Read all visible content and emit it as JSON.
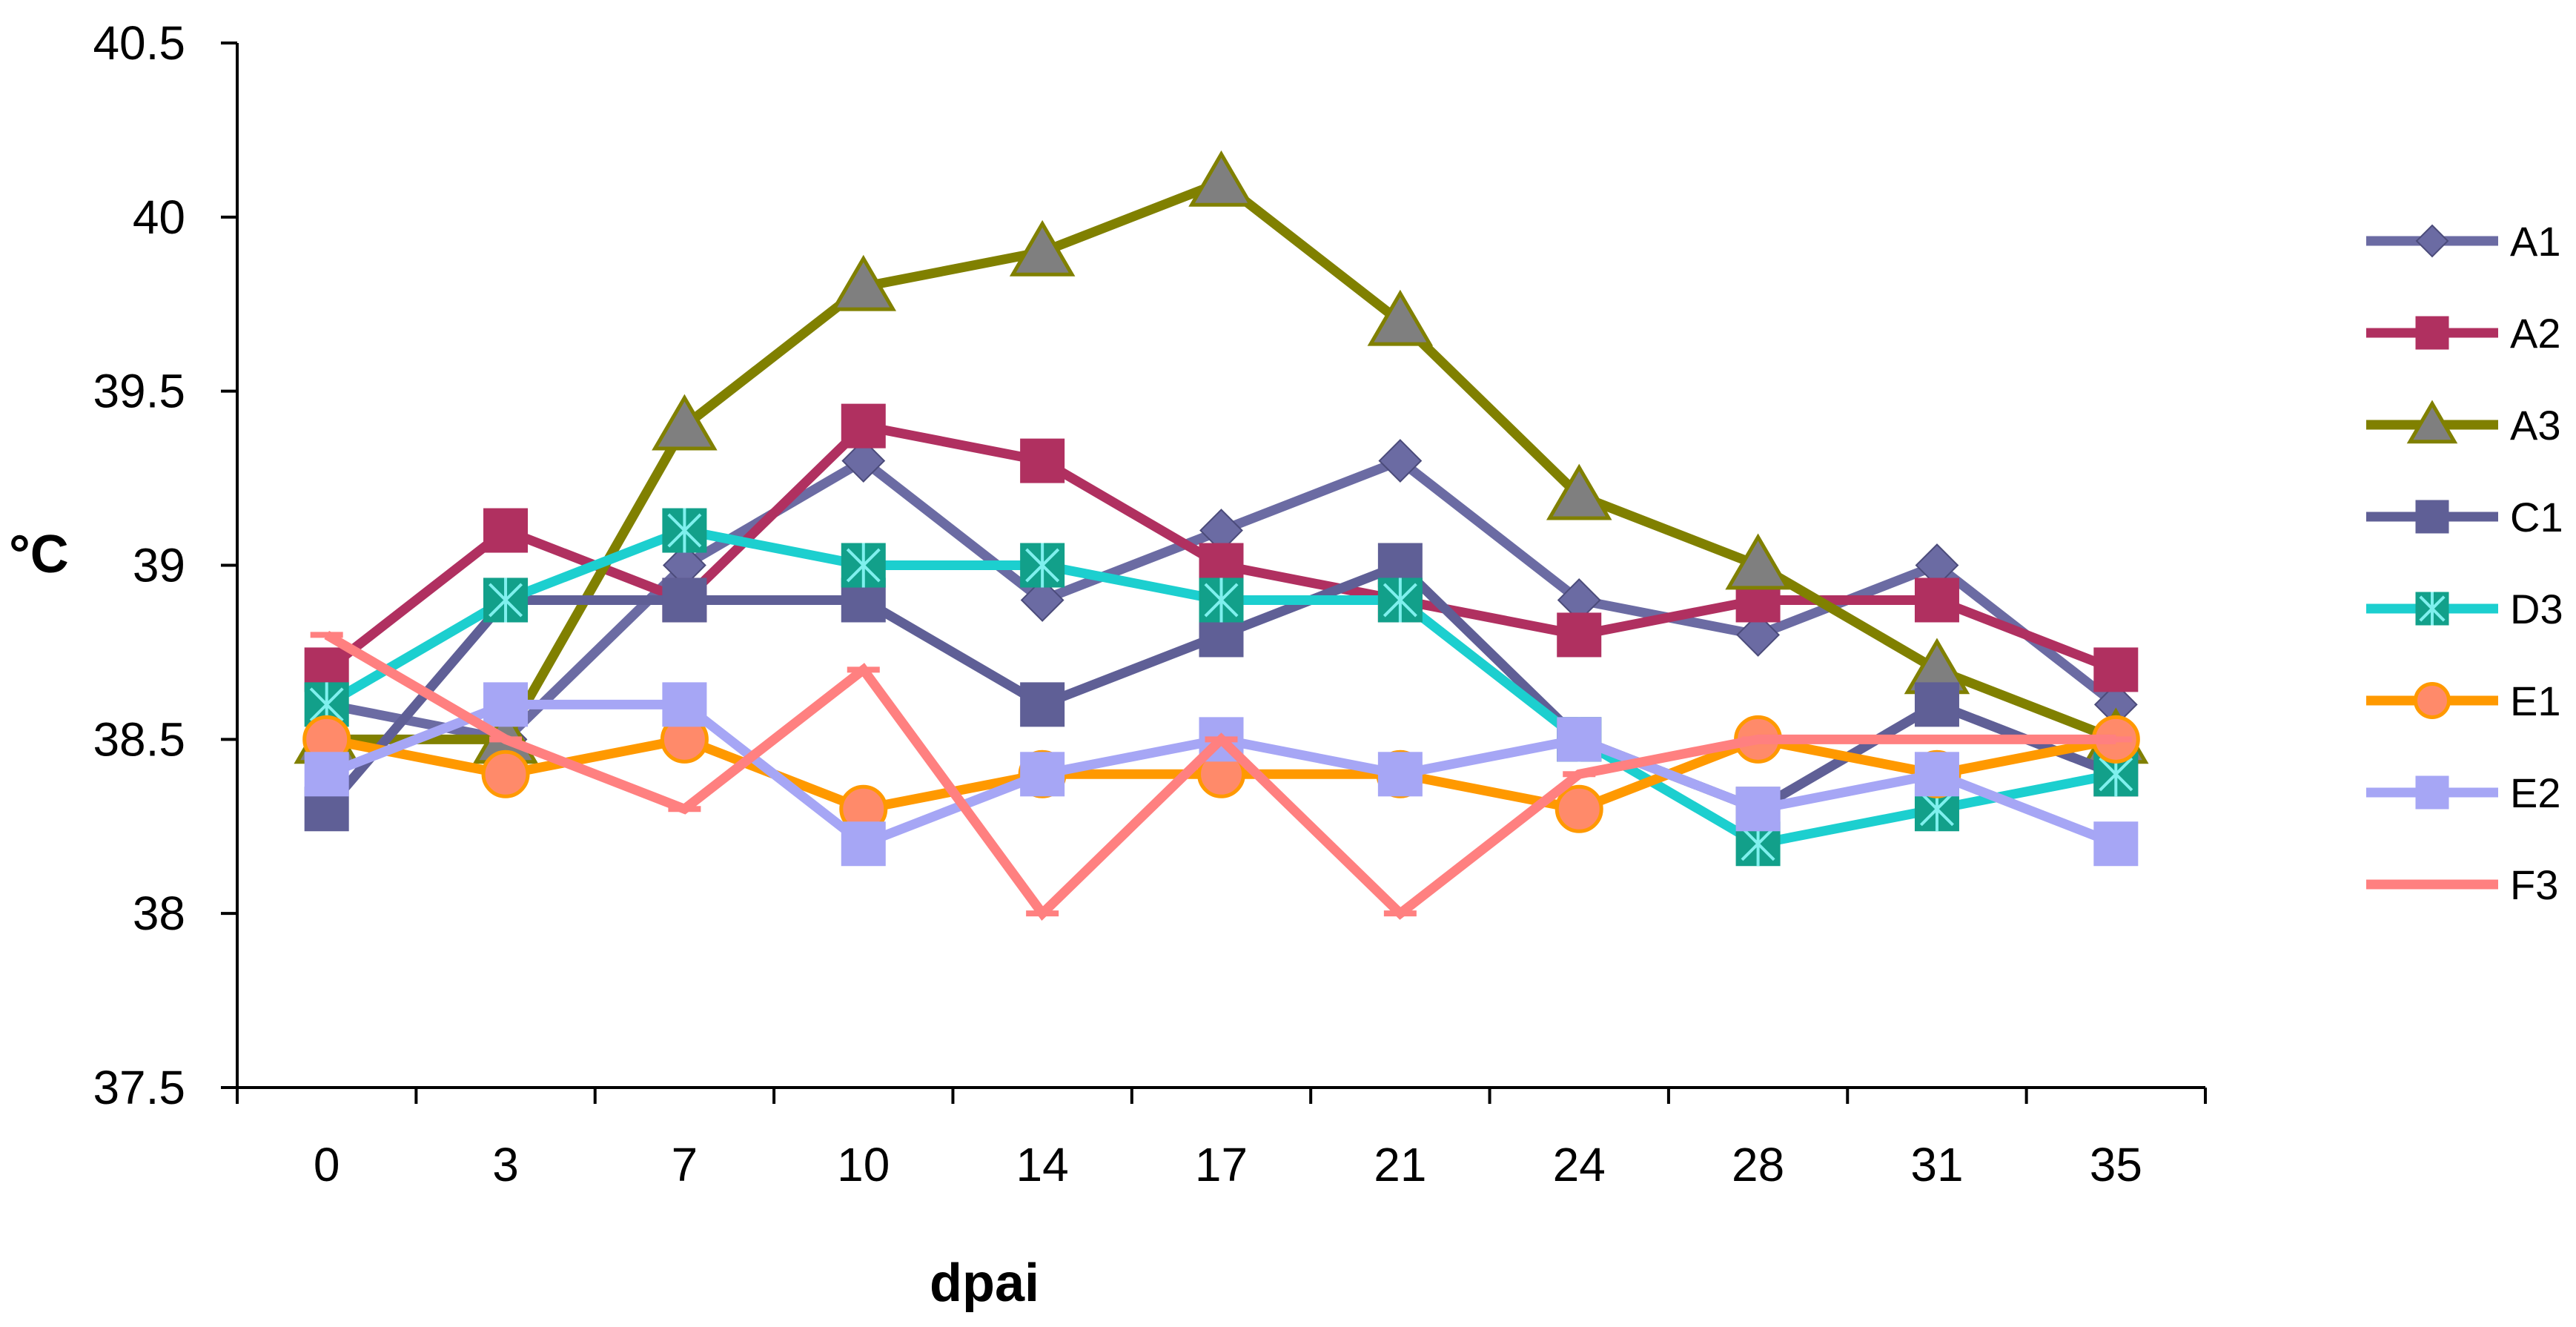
{
  "chart_data": {
    "type": "line",
    "title": "",
    "xlabel": "dpai",
    "ylabel": "°C",
    "categories": [
      "0",
      "3",
      "7",
      "10",
      "14",
      "17",
      "21",
      "24",
      "28",
      "31",
      "35"
    ],
    "ylim": [
      37.5,
      40.5
    ],
    "yticks": [
      "37.5",
      "38",
      "38.5",
      "39",
      "39.5",
      "40",
      "40.5"
    ],
    "yticks_values": [
      37.5,
      38,
      38.5,
      39,
      39.5,
      40,
      40.5
    ],
    "grid": false,
    "legend_position": "right",
    "series": [
      {
        "name": "A1",
        "color": "#6b6ba3",
        "marker": "diamond",
        "values": [
          38.6,
          38.5,
          39.0,
          39.3,
          38.9,
          39.1,
          39.3,
          38.9,
          38.8,
          39.0,
          38.6
        ]
      },
      {
        "name": "A2",
        "color": "#b03060",
        "marker": "square",
        "values": [
          38.7,
          39.1,
          38.9,
          39.4,
          39.3,
          39.0,
          38.9,
          38.8,
          38.9,
          38.9,
          38.7
        ]
      },
      {
        "name": "A3",
        "color": "#808000",
        "marker": "triangle",
        "values": [
          38.5,
          38.5,
          39.4,
          39.8,
          39.9,
          40.1,
          39.7,
          39.2,
          39.0,
          38.7,
          38.5
        ]
      },
      {
        "name": "C1",
        "color": "#5f5f96",
        "marker": "square",
        "values": [
          38.3,
          38.9,
          38.9,
          38.9,
          38.6,
          38.8,
          39.0,
          38.5,
          38.3,
          38.6,
          38.4
        ]
      },
      {
        "name": "D3",
        "color": "#1ccfcf",
        "marker": "star-square",
        "values": [
          38.6,
          38.9,
          39.1,
          39.0,
          39.0,
          38.9,
          38.9,
          38.5,
          38.2,
          38.3,
          38.4
        ]
      },
      {
        "name": "E1",
        "color": "#ff9900",
        "marker": "circle",
        "values": [
          38.5,
          38.4,
          38.5,
          38.3,
          38.4,
          38.4,
          38.4,
          38.3,
          38.5,
          38.4,
          38.5
        ]
      },
      {
        "name": "E2",
        "color": "#a6a6f5",
        "marker": "square",
        "values": [
          38.4,
          38.6,
          38.6,
          38.2,
          38.4,
          38.5,
          38.4,
          38.5,
          38.3,
          38.4,
          38.2
        ]
      },
      {
        "name": "F3",
        "color": "#ff8080",
        "marker": "dash",
        "values": [
          38.8,
          38.5,
          38.3,
          38.7,
          38.0,
          38.5,
          38.0,
          38.4,
          38.5,
          38.5,
          38.5
        ]
      }
    ]
  }
}
